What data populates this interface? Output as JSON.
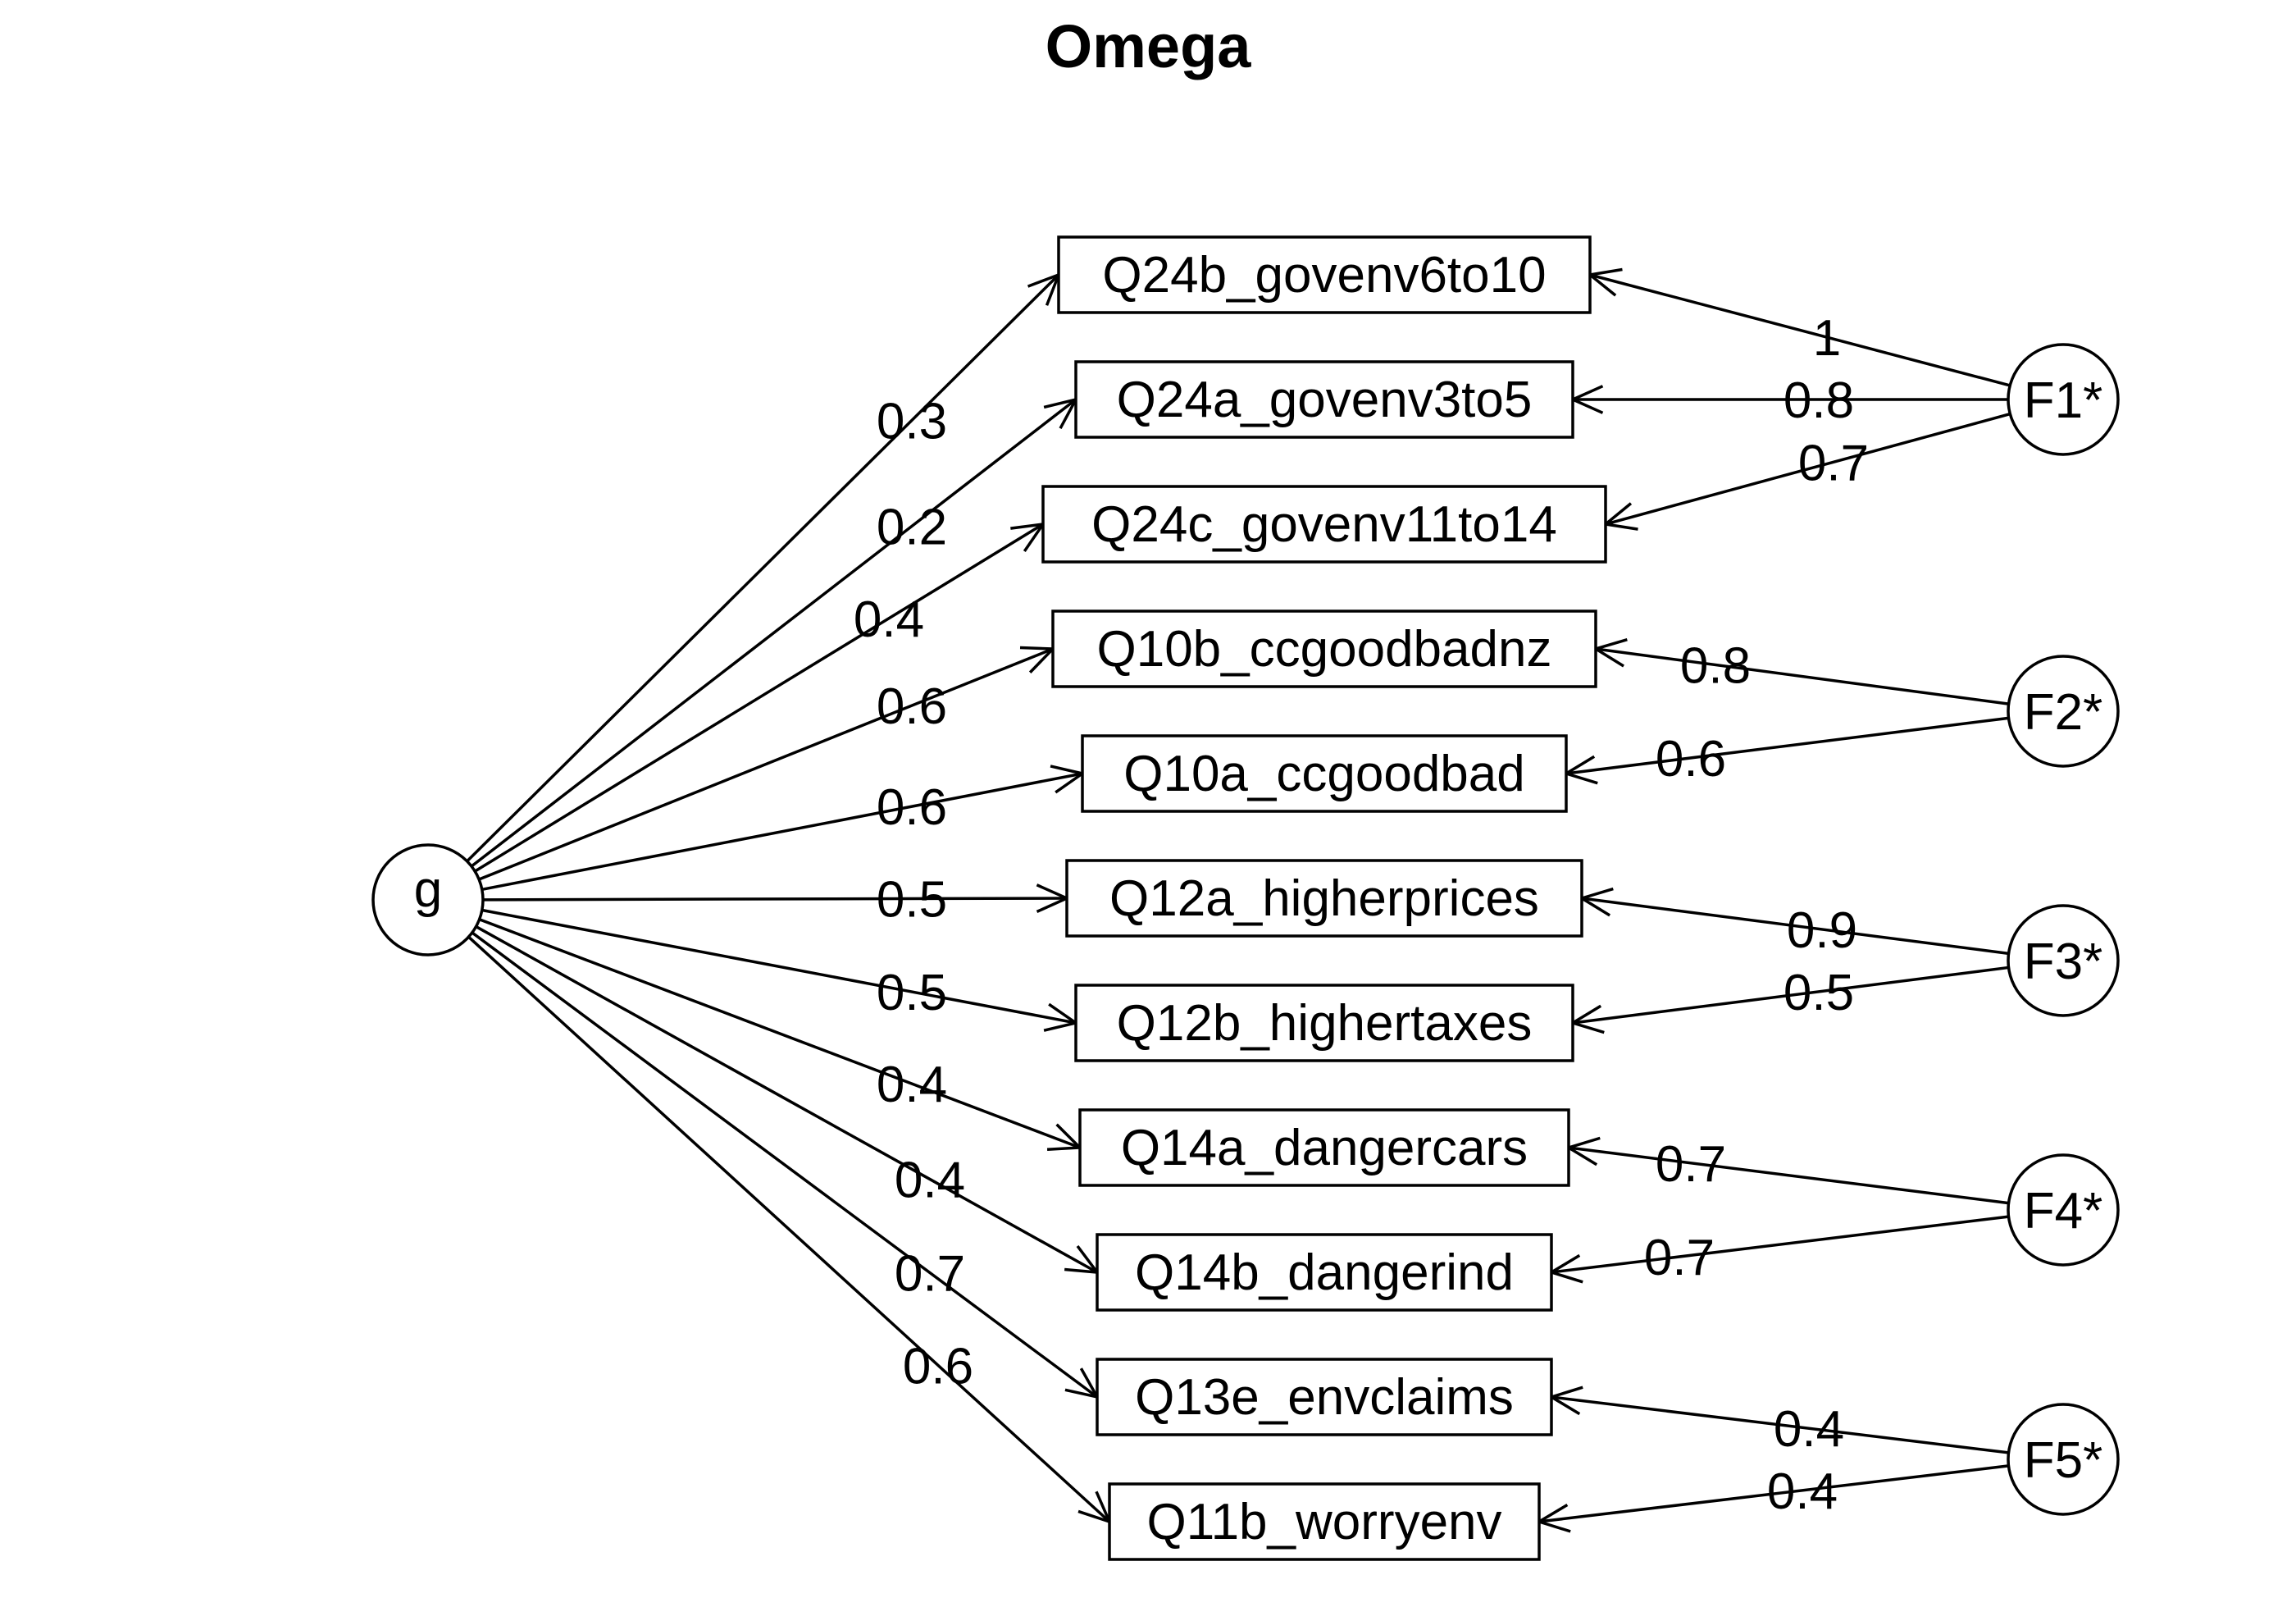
{
  "title": "Omega",
  "general_factor": {
    "label": "g"
  },
  "group_factors": [
    {
      "id": "F1",
      "label": "F1*"
    },
    {
      "id": "F2",
      "label": "F2*"
    },
    {
      "id": "F3",
      "label": "F3*"
    },
    {
      "id": "F4",
      "label": "F4*"
    },
    {
      "id": "F5",
      "label": "F5*"
    }
  ],
  "items": [
    {
      "label": "Q24b_govenv6to10",
      "g_loading": "0.3",
      "group": "F1",
      "group_loading": "1"
    },
    {
      "label": "Q24a_govenv3to5",
      "g_loading": "0.2",
      "group": "F1",
      "group_loading": "0.8"
    },
    {
      "label": "Q24c_govenv11to14",
      "g_loading": "0.4",
      "group": "F1",
      "group_loading": "0.7"
    },
    {
      "label": "Q10b_ccgoodbadnz",
      "g_loading": "0.6",
      "group": "F2",
      "group_loading": "0.8"
    },
    {
      "label": "Q10a_ccgoodbad",
      "g_loading": "0.6",
      "group": "F2",
      "group_loading": "0.6"
    },
    {
      "label": "Q12a_higherprices",
      "g_loading": "0.5",
      "group": "F3",
      "group_loading": "0.9"
    },
    {
      "label": "Q12b_highertaxes",
      "g_loading": "0.5",
      "group": "F3",
      "group_loading": "0.5"
    },
    {
      "label": "Q14a_dangercars",
      "g_loading": "0.4",
      "group": "F4",
      "group_loading": "0.7"
    },
    {
      "label": "Q14b_dangerind",
      "g_loading": "0.4",
      "group": "F4",
      "group_loading": "0.7"
    },
    {
      "label": "Q13e_envclaims",
      "g_loading": "0.7",
      "group": "F5",
      "group_loading": "0.4"
    },
    {
      "label": "Q11b_worryenv",
      "g_loading": "0.6",
      "group": "F5",
      "group_loading": "0.4"
    }
  ]
}
